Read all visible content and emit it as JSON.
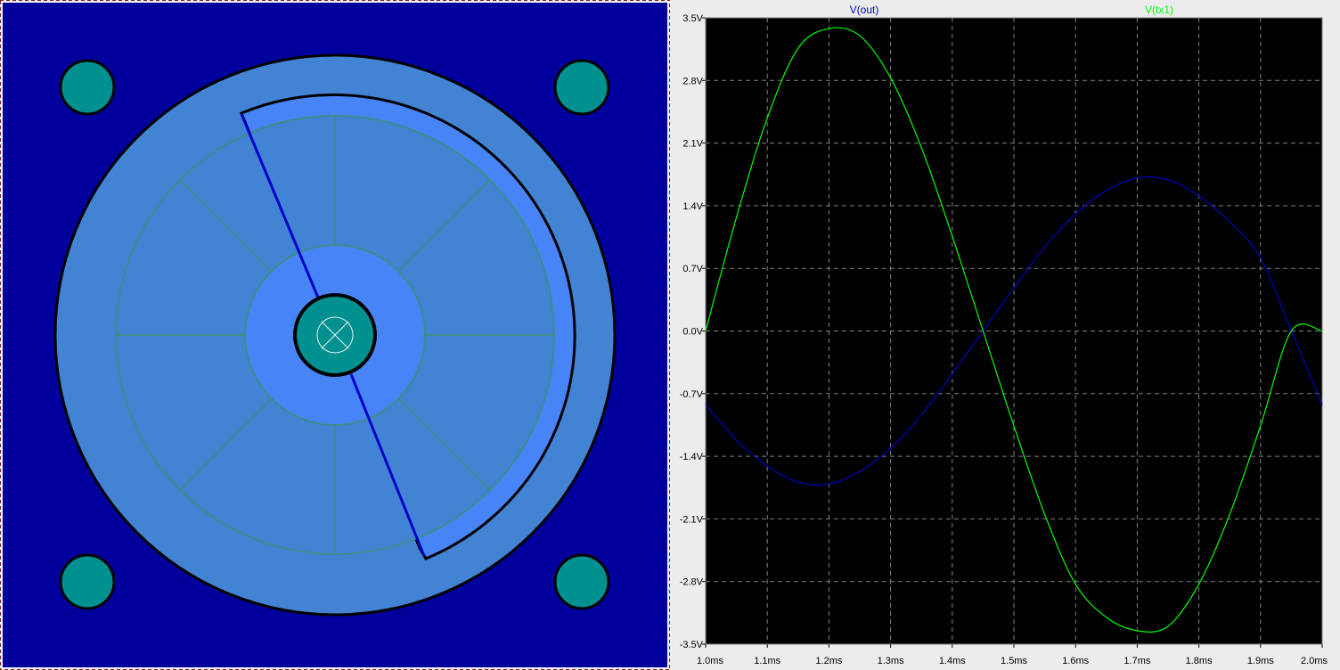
{
  "layout_view": {
    "colors": {
      "background": "#00009c",
      "outer_disc": "#4283d4",
      "inner_disc": "#4784f6",
      "spokes": "#3f8c8a",
      "pad": "#009090",
      "outline": "#000000",
      "gap_line": "#0000c8"
    },
    "mounting_holes": 4,
    "center_symbol": "crossed-circle-icon"
  },
  "chart_data": {
    "type": "line",
    "xlabel": "",
    "ylabel": "",
    "xlim": [
      1.0,
      2.0
    ],
    "ylim": [
      -3.5,
      3.5
    ],
    "grid": true,
    "background": "#000000",
    "x_ticks": [
      "1.0ms",
      "1.1ms",
      "1.2ms",
      "1.3ms",
      "1.4ms",
      "1.5ms",
      "1.6ms",
      "1.7ms",
      "1.8ms",
      "1.9ms",
      "2.0ms"
    ],
    "y_ticks": [
      "3.5V",
      "2.8V",
      "2.1V",
      "1.4V",
      "0.7V",
      "0.0V",
      "-0.7V",
      "-1.4V",
      "-2.1V",
      "-2.8V",
      "-3.5V"
    ],
    "x_tick_values": [
      1.0,
      1.1,
      1.2,
      1.3,
      1.4,
      1.5,
      1.6,
      1.7,
      1.8,
      1.9,
      2.0
    ],
    "y_tick_values": [
      3.5,
      2.8,
      2.1,
      1.4,
      0.7,
      0.0,
      -0.7,
      -1.4,
      -2.1,
      -2.8,
      -3.5
    ],
    "series": [
      {
        "name": "V(out)",
        "color": "#0000c0",
        "x": [
          1.0,
          1.05,
          1.1,
          1.15,
          1.2,
          1.25,
          1.3,
          1.35,
          1.4,
          1.45,
          1.5,
          1.55,
          1.6,
          1.65,
          1.7,
          1.75,
          1.8,
          1.85,
          1.9,
          1.95,
          2.0
        ],
        "y": [
          -0.82,
          -1.22,
          -1.51,
          -1.69,
          -1.71,
          -1.57,
          -1.31,
          -0.94,
          -0.48,
          -0.0,
          0.48,
          0.94,
          1.31,
          1.57,
          1.71,
          1.69,
          1.51,
          1.22,
          0.82,
          0.0,
          -0.82
        ]
      },
      {
        "name": "V(tx1)",
        "color": "#00ff00",
        "x": [
          1.0,
          1.05,
          1.1,
          1.15,
          1.2,
          1.25,
          1.3,
          1.35,
          1.4,
          1.45,
          1.5,
          1.55,
          1.6,
          1.65,
          1.7,
          1.75,
          1.8,
          1.85,
          1.9,
          1.95,
          2.0
        ],
        "y": [
          0.0,
          1.27,
          2.38,
          3.16,
          3.38,
          3.3,
          2.83,
          2.05,
          1.06,
          0.0,
          -1.06,
          -2.05,
          -2.83,
          -3.2,
          -3.35,
          -3.3,
          -2.83,
          -2.05,
          -1.06,
          -0.0,
          0.0
        ]
      }
    ]
  }
}
